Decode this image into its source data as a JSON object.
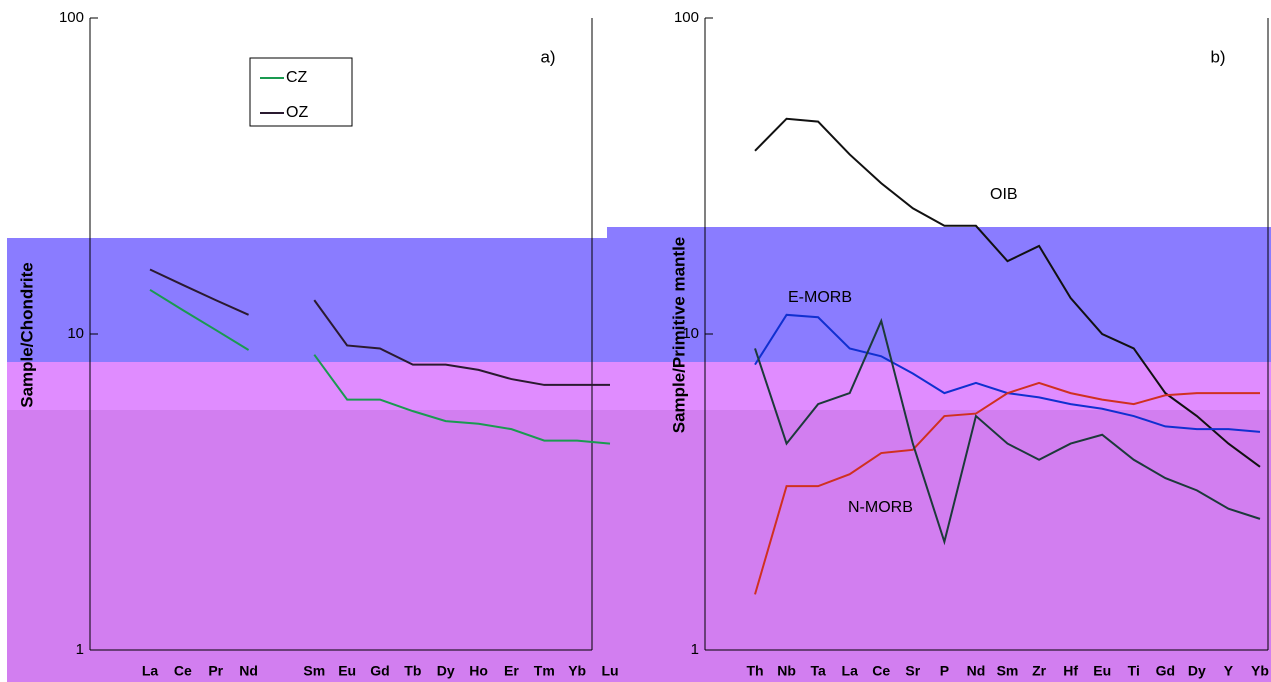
{
  "chart_data": [
    {
      "type": "line",
      "panel_label": "a)",
      "ylabel": "Sample/Chondrite",
      "log_y": true,
      "categories": [
        "La",
        "Ce",
        "Pr",
        "Nd",
        null,
        "Sm",
        "Eu",
        "Gd",
        "Tb",
        "Dy",
        "Ho",
        "Er",
        "Tm",
        "Yb",
        "Lu"
      ],
      "series": [
        {
          "name": "CZ",
          "color": "#1a9a50",
          "values": [
            13.8,
            11.9,
            10.3,
            8.9,
            null,
            8.6,
            6.2,
            6.2,
            5.7,
            5.3,
            5.2,
            5.0,
            4.6,
            4.6,
            4.5
          ]
        },
        {
          "name": "OZ",
          "color": "#2a1a30",
          "values": [
            16,
            14.3,
            12.8,
            11.5,
            null,
            12.8,
            9.2,
            9.0,
            8.0,
            8.0,
            7.7,
            7.2,
            6.9,
            6.9,
            6.9
          ]
        }
      ],
      "ylim": [
        1,
        100
      ],
      "yticks": [
        1,
        10,
        100
      ]
    },
    {
      "type": "line",
      "panel_label": "b)",
      "ylabel": "Sample/Primitive mantle",
      "log_y": true,
      "categories": [
        "Th",
        "Nb",
        "Ta",
        "La",
        "Ce",
        "Sr",
        "P",
        "Nd",
        "Sm",
        "Zr",
        "Hf",
        "Eu",
        "Ti",
        "Gd",
        "Dy",
        "Y",
        "Yb"
      ],
      "series": [
        {
          "name": "OIB",
          "color": "#111111",
          "values": [
            38,
            48,
            47,
            37,
            30,
            25,
            22,
            22,
            17,
            19,
            13,
            10,
            9,
            6.5,
            5.5,
            4.5,
            3.8
          ]
        },
        {
          "name": "E-MORB",
          "color": "#1030d0",
          "values": [
            8,
            11.5,
            11.3,
            9,
            8.5,
            7.5,
            6.5,
            7,
            6.5,
            6.3,
            6,
            5.8,
            5.5,
            5.1,
            5,
            5,
            4.9
          ]
        },
        {
          "name": "N-MORB",
          "color": "#d03020",
          "values": [
            1.5,
            3.3,
            3.3,
            3.6,
            4.2,
            4.3,
            5.5,
            5.6,
            6.5,
            7,
            6.5,
            6.2,
            6,
            6.4,
            6.5,
            6.5,
            6.5
          ]
        },
        {
          "color": "#1c3a3a",
          "values": [
            9,
            4.5,
            6,
            6.5,
            11,
            4.5,
            2.2,
            5.5,
            4.5,
            4,
            4.5,
            4.8,
            4,
            3.5,
            3.2,
            2.8,
            2.6
          ]
        }
      ],
      "ylim": [
        1,
        100
      ],
      "yticks": [
        1,
        10,
        100
      ]
    }
  ]
}
